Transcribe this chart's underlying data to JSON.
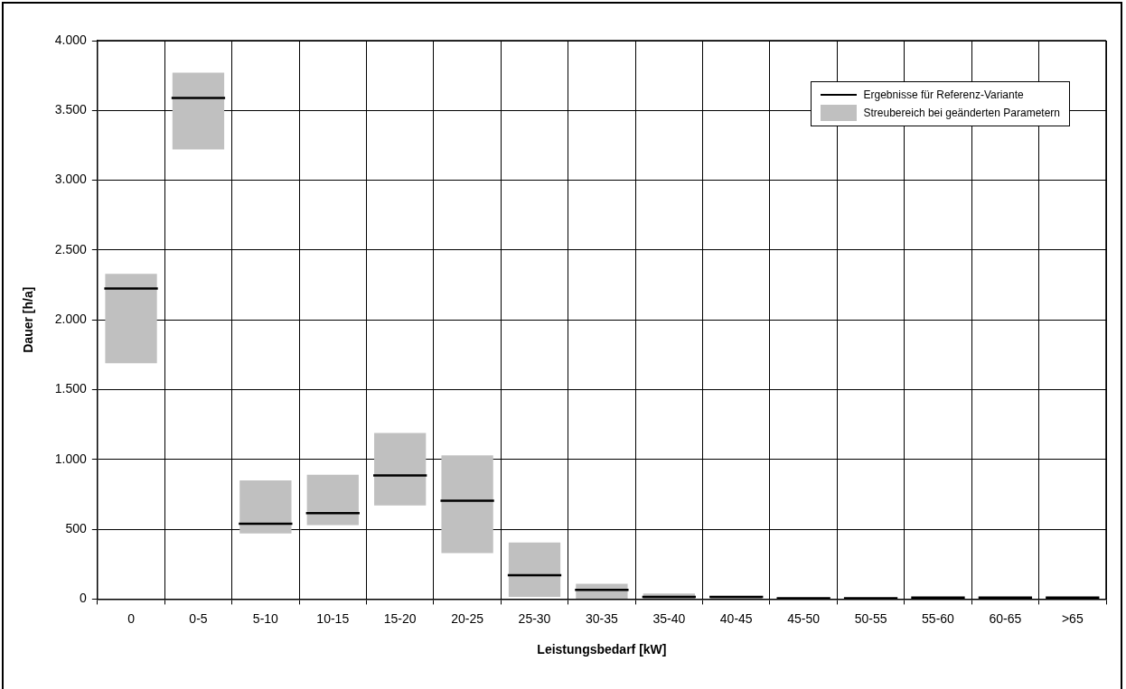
{
  "chart_data": {
    "type": "box",
    "xlabel": "Leistungsbedarf [kW]",
    "ylabel": "Dauer [h/a]",
    "legend_title": "Ergebnisse für Referenz-Variante",
    "categories": [
      "0",
      "0-5",
      "5-10",
      "10-15",
      "15-20",
      "20-25",
      "25-30",
      "30-35",
      "35-40",
      "40-45",
      "45-50",
      "50-55",
      "55-60",
      "60-65",
      ">65"
    ],
    "series": [
      {
        "name": "Streubereich bei geänderten Parametern",
        "color": "#c0c0c0",
        "boxes": [
          {
            "low": 1690,
            "q1": 1690,
            "median": 2225,
            "q3": 2330,
            "high": 2330
          },
          {
            "low": 3220,
            "q1": 3220,
            "median": 3590,
            "q3": 3770,
            "high": 3770
          },
          {
            "low": 470,
            "q1": 470,
            "median": 540,
            "q3": 850,
            "high": 850
          },
          {
            "low": 530,
            "q1": 530,
            "median": 615,
            "q3": 890,
            "high": 890
          },
          {
            "low": 670,
            "q1": 670,
            "median": 885,
            "q3": 1190,
            "high": 1190
          },
          {
            "low": 330,
            "q1": 330,
            "median": 705,
            "q3": 1030,
            "high": 1030
          },
          {
            "low": 15,
            "q1": 15,
            "median": 170,
            "q3": 405,
            "high": 405
          },
          {
            "low": 0,
            "q1": 0,
            "median": 65,
            "q3": 110,
            "high": 110
          },
          {
            "low": 0,
            "q1": 0,
            "median": 15,
            "q3": 40,
            "high": 40
          },
          {
            "low": 0,
            "q1": 0,
            "median": 15,
            "q3": 15,
            "high": 15
          },
          {
            "low": 0,
            "q1": 0,
            "median": 6,
            "q3": 6,
            "high": 6
          },
          {
            "low": 0,
            "q1": 0,
            "median": 6,
            "q3": 6,
            "high": 6
          },
          {
            "low": 0,
            "q1": 0,
            "median": 10,
            "q3": 10,
            "high": 10
          },
          {
            "low": 0,
            "q1": 0,
            "median": 10,
            "q3": 10,
            "high": 10
          },
          {
            "low": 0,
            "q1": 0,
            "median": 10,
            "q3": 10,
            "high": 10
          }
        ]
      }
    ],
    "ylim": [
      0,
      4000
    ],
    "yticks": [
      0,
      500,
      {
        "value": 1000,
        "label": "1.000"
      },
      {
        "value": 1500,
        "label": "1.500"
      },
      {
        "value": 2000,
        "label": "2.000"
      },
      {
        "value": 2500,
        "label": "2.500"
      },
      {
        "value": 3000,
        "label": "3.000"
      },
      {
        "value": 3500,
        "label": "3.500"
      },
      {
        "value": 4000,
        "label": "4.000"
      }
    ],
    "grid": true,
    "legend": "top right"
  }
}
